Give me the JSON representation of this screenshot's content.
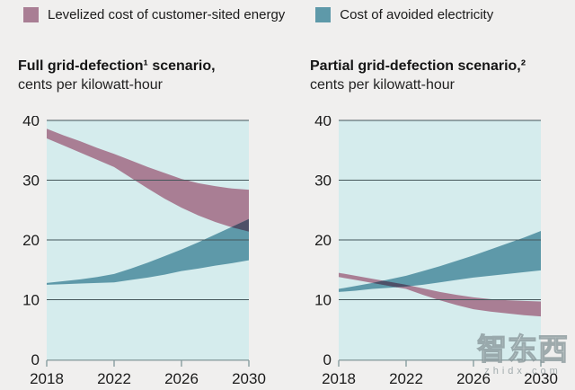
{
  "page": {
    "background": "#f0efee"
  },
  "legend": {
    "items": [
      {
        "label": "Levelized cost of customer-sited energy",
        "color": "#a97e94"
      },
      {
        "label": "Cost of avoided electricity",
        "color": "#5e99a9"
      }
    ]
  },
  "watermark": {
    "text": "智东西",
    "subtext": "zhidx.com"
  },
  "chart_data": [
    {
      "type": "area",
      "title": "Full grid-defection¹ scenario,",
      "subtitle": "cents per kilowatt-hour",
      "x": [
        2018,
        2019,
        2020,
        2021,
        2022,
        2023,
        2024,
        2025,
        2026,
        2027,
        2028,
        2029,
        2030
      ],
      "x_ticks": [
        2018,
        2022,
        2026,
        2030
      ],
      "x_tick_labels": [
        "2018",
        "2022",
        "2026",
        "2030"
      ],
      "ylim": [
        0,
        40
      ],
      "y_ticks": [
        0,
        10,
        20,
        30,
        40
      ],
      "grid": true,
      "plot_bg": "#d5eced",
      "grid_color": "#44565a",
      "axis_color": "#8fa3a5",
      "overlap_color": "#4e5068",
      "series": [
        {
          "name": "Levelized cost of customer-sited energy",
          "color": "#a97e94",
          "upper": [
            38.6,
            37.5,
            36.5,
            35.4,
            34.4,
            33.3,
            32.2,
            31.2,
            30.2,
            29.5,
            29.0,
            28.6,
            28.4
          ],
          "lower": [
            37.0,
            35.8,
            34.6,
            33.4,
            32.2,
            30.4,
            28.6,
            26.9,
            25.4,
            24.1,
            23.0,
            22.1,
            21.4
          ]
        },
        {
          "name": "Cost of avoided electricity",
          "color": "#5e99a9",
          "upper": [
            12.8,
            13.1,
            13.4,
            13.8,
            14.3,
            15.2,
            16.2,
            17.3,
            18.4,
            19.6,
            20.9,
            22.2,
            23.5
          ],
          "lower": [
            12.5,
            12.6,
            12.7,
            12.8,
            12.9,
            13.3,
            13.7,
            14.2,
            14.8,
            15.2,
            15.7,
            16.1,
            16.6
          ]
        }
      ]
    },
    {
      "type": "area",
      "title": "Partial grid-defection scenario,²",
      "subtitle": "cents per kilowatt-hour",
      "x": [
        2018,
        2019,
        2020,
        2021,
        2022,
        2023,
        2024,
        2025,
        2026,
        2027,
        2028,
        2029,
        2030
      ],
      "x_ticks": [
        2018,
        2022,
        2026,
        2030
      ],
      "x_tick_labels": [
        "2018",
        "2022",
        "2026",
        "2030"
      ],
      "ylim": [
        0,
        40
      ],
      "y_ticks": [
        0,
        10,
        20,
        30,
        40
      ],
      "grid": true,
      "plot_bg": "#d5eced",
      "grid_color": "#44565a",
      "axis_color": "#8fa3a5",
      "overlap_color": "#4e5068",
      "series": [
        {
          "name": "Levelized cost of customer-sited energy",
          "color": "#a97e94",
          "upper": [
            14.5,
            14.0,
            13.5,
            13.0,
            12.5,
            11.9,
            11.3,
            10.8,
            10.4,
            10.1,
            9.9,
            9.8,
            9.7
          ],
          "lower": [
            13.8,
            13.3,
            12.8,
            12.3,
            11.8,
            10.8,
            9.9,
            9.1,
            8.4,
            8.0,
            7.7,
            7.4,
            7.2
          ]
        },
        {
          "name": "Cost of avoided electricity",
          "color": "#5e99a9",
          "upper": [
            11.8,
            12.3,
            12.8,
            13.4,
            14.0,
            14.8,
            15.6,
            16.5,
            17.4,
            18.4,
            19.4,
            20.4,
            21.5
          ],
          "lower": [
            11.3,
            11.5,
            11.8,
            12.0,
            12.2,
            12.5,
            12.9,
            13.3,
            13.7,
            14.0,
            14.3,
            14.6,
            14.9
          ]
        }
      ]
    }
  ]
}
